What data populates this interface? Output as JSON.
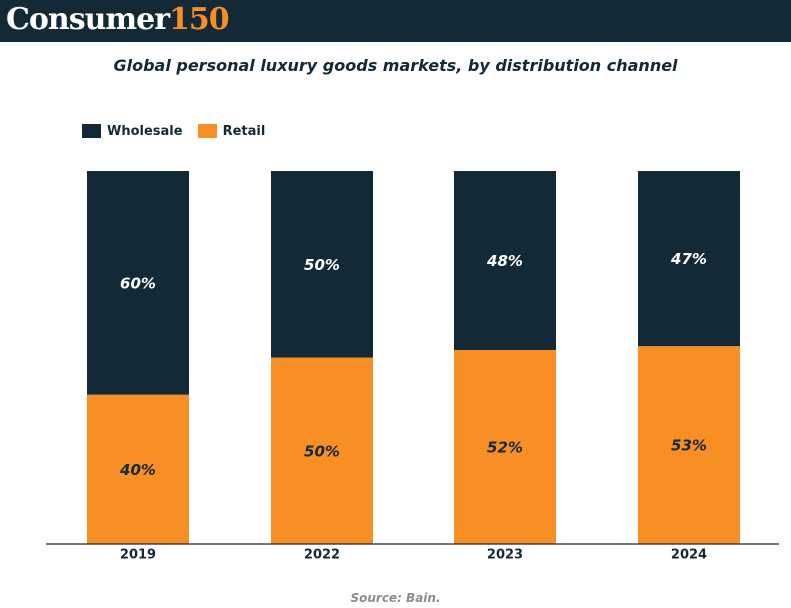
{
  "brand": {
    "name_word": "Consumer",
    "name_number": "150",
    "bar_color": "#132a36",
    "accent_color": "#f78f25"
  },
  "chart_data": {
    "type": "bar",
    "stacked": true,
    "title": "Global personal luxury goods markets, by distribution channel",
    "categories": [
      "2019",
      "2022",
      "2023",
      "2024"
    ],
    "series": [
      {
        "name": "Wholesale",
        "color": "#132a36",
        "values": [
          60,
          50,
          48,
          47
        ],
        "labels": [
          "60%",
          "50%",
          "48%",
          "47%"
        ]
      },
      {
        "name": "Retail",
        "color": "#f78f25",
        "values": [
          40,
          50,
          52,
          53
        ],
        "labels": [
          "40%",
          "50%",
          "52%",
          "53%"
        ]
      }
    ],
    "ylim": [
      0,
      100
    ],
    "unit": "%",
    "grid": false,
    "legend_position": "top-left",
    "xlabel": "",
    "ylabel": ""
  },
  "footer": {
    "source": "Source: Bain."
  }
}
